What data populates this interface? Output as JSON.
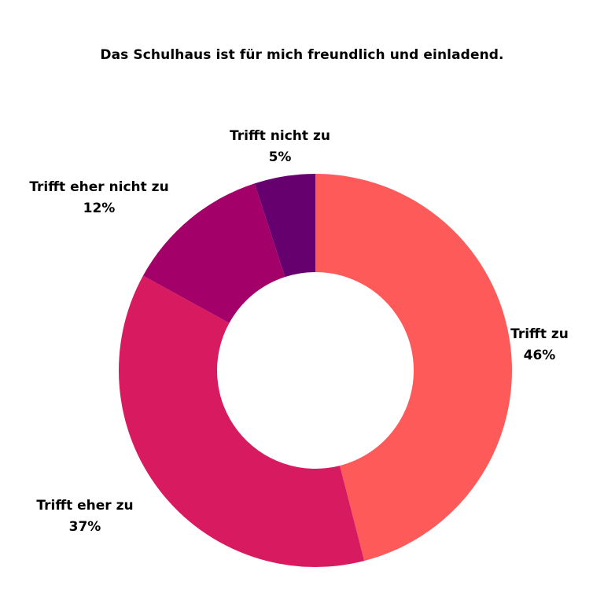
{
  "chart_data": {
    "type": "pie",
    "title": "Das Schulhaus ist für mich freundlich und einladend.",
    "categories": [
      "Trifft zu",
      "Trifft eher zu",
      "Trifft eher nicht zu",
      "Trifft nicht zu"
    ],
    "values": [
      46,
      37,
      12,
      5
    ],
    "value_labels": [
      "46%",
      "37%",
      "12%",
      "5%"
    ],
    "colors": [
      "#FF5A5A",
      "#D81B60",
      "#A3006A",
      "#66006E"
    ],
    "donut": true,
    "start_angle": "12 o'clock",
    "direction": "clockwise"
  }
}
